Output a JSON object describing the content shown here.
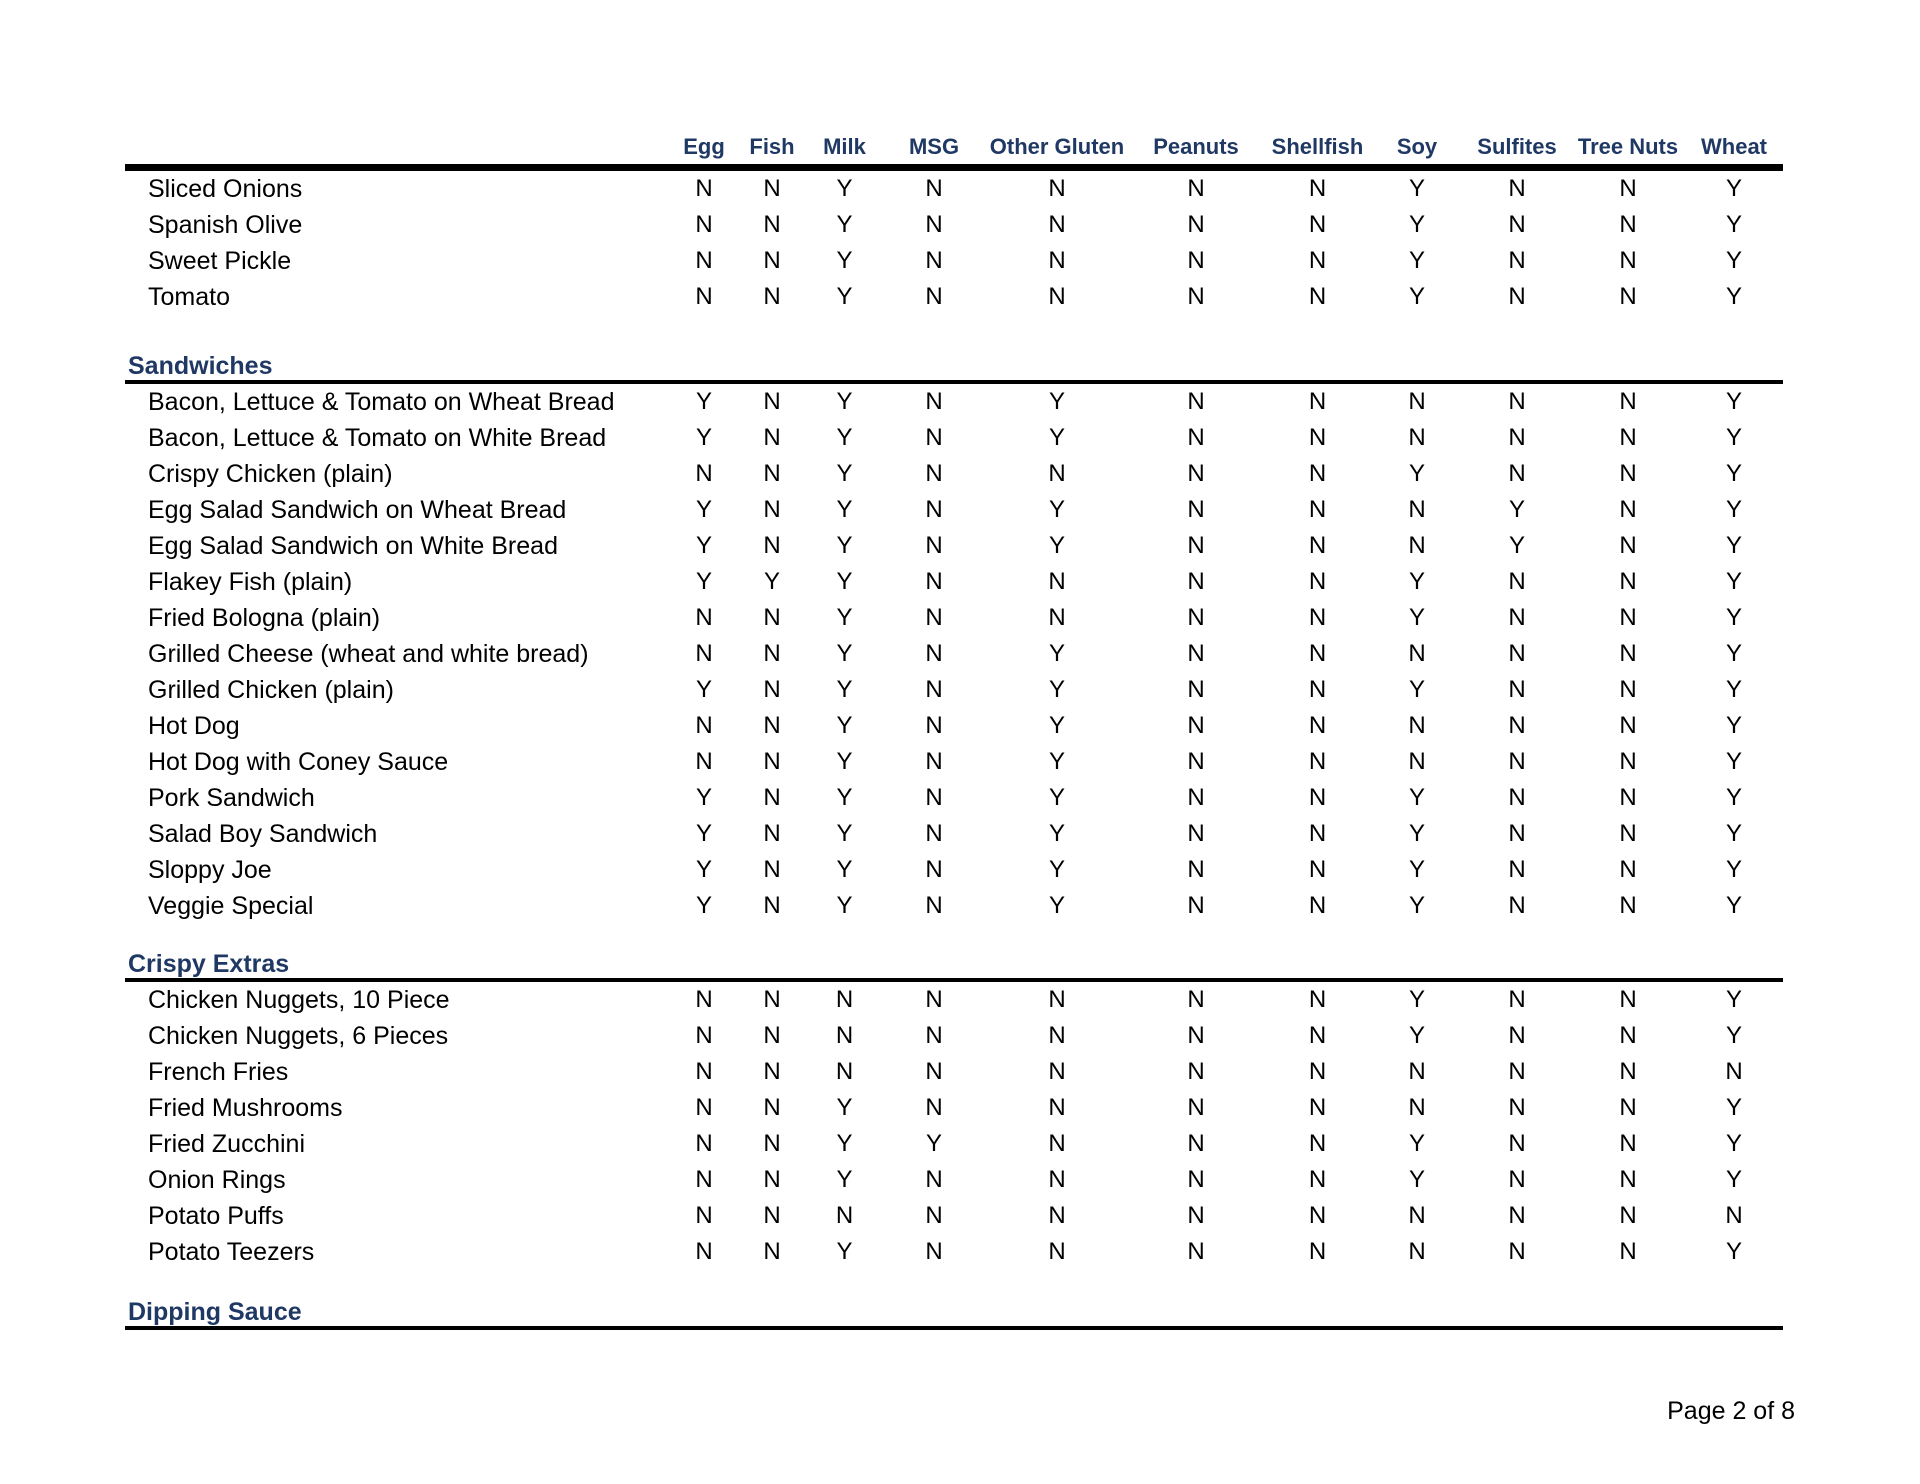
{
  "document": {
    "footer_page_label": "Page 2 of 8"
  },
  "colors": {
    "heading_navy": "#1f3864",
    "text_black": "#000000",
    "rule_black": "#000000"
  },
  "allergen_table": {
    "column_headers": [
      "Egg",
      "Fish",
      "Milk",
      "MSG",
      "Other Gluten",
      "Peanuts",
      "Shellfish",
      "Soy",
      "Sulfites",
      "Tree Nuts",
      "Wheat"
    ],
    "sections": [
      {
        "title": "",
        "items": [
          {
            "name": "Sliced Onions",
            "values": [
              "N",
              "N",
              "Y",
              "N",
              "N",
              "N",
              "N",
              "Y",
              "N",
              "N",
              "Y"
            ]
          },
          {
            "name": "Spanish Olive",
            "values": [
              "N",
              "N",
              "Y",
              "N",
              "N",
              "N",
              "N",
              "Y",
              "N",
              "N",
              "Y"
            ]
          },
          {
            "name": "Sweet Pickle",
            "values": [
              "N",
              "N",
              "Y",
              "N",
              "N",
              "N",
              "N",
              "Y",
              "N",
              "N",
              "Y"
            ]
          },
          {
            "name": "Tomato",
            "values": [
              "N",
              "N",
              "Y",
              "N",
              "N",
              "N",
              "N",
              "Y",
              "N",
              "N",
              "Y"
            ]
          }
        ]
      },
      {
        "title": "Sandwiches",
        "items": [
          {
            "name": "Bacon, Lettuce & Tomato on Wheat Bread",
            "values": [
              "Y",
              "N",
              "Y",
              "N",
              "Y",
              "N",
              "N",
              "N",
              "N",
              "N",
              "Y"
            ]
          },
          {
            "name": "Bacon, Lettuce & Tomato on White Bread",
            "values": [
              "Y",
              "N",
              "Y",
              "N",
              "Y",
              "N",
              "N",
              "N",
              "N",
              "N",
              "Y"
            ]
          },
          {
            "name": "Crispy Chicken (plain)",
            "values": [
              "N",
              "N",
              "Y",
              "N",
              "N",
              "N",
              "N",
              "Y",
              "N",
              "N",
              "Y"
            ]
          },
          {
            "name": "Egg Salad Sandwich on Wheat Bread",
            "values": [
              "Y",
              "N",
              "Y",
              "N",
              "Y",
              "N",
              "N",
              "N",
              "Y",
              "N",
              "Y"
            ]
          },
          {
            "name": "Egg Salad Sandwich on White Bread",
            "values": [
              "Y",
              "N",
              "Y",
              "N",
              "Y",
              "N",
              "N",
              "N",
              "Y",
              "N",
              "Y"
            ]
          },
          {
            "name": "Flakey Fish (plain)",
            "values": [
              "Y",
              "Y",
              "Y",
              "N",
              "N",
              "N",
              "N",
              "Y",
              "N",
              "N",
              "Y"
            ]
          },
          {
            "name": "Fried Bologna (plain)",
            "values": [
              "N",
              "N",
              "Y",
              "N",
              "N",
              "N",
              "N",
              "Y",
              "N",
              "N",
              "Y"
            ]
          },
          {
            "name": "Grilled Cheese (wheat and white bread)",
            "values": [
              "N",
              "N",
              "Y",
              "N",
              "Y",
              "N",
              "N",
              "N",
              "N",
              "N",
              "Y"
            ]
          },
          {
            "name": "Grilled Chicken (plain)",
            "values": [
              "Y",
              "N",
              "Y",
              "N",
              "Y",
              "N",
              "N",
              "Y",
              "N",
              "N",
              "Y"
            ]
          },
          {
            "name": "Hot Dog",
            "values": [
              "N",
              "N",
              "Y",
              "N",
              "Y",
              "N",
              "N",
              "N",
              "N",
              "N",
              "Y"
            ]
          },
          {
            "name": "Hot Dog with Coney Sauce",
            "values": [
              "N",
              "N",
              "Y",
              "N",
              "Y",
              "N",
              "N",
              "N",
              "N",
              "N",
              "Y"
            ]
          },
          {
            "name": "Pork Sandwich",
            "values": [
              "Y",
              "N",
              "Y",
              "N",
              "Y",
              "N",
              "N",
              "Y",
              "N",
              "N",
              "Y"
            ]
          },
          {
            "name": "Salad Boy Sandwich",
            "values": [
              "Y",
              "N",
              "Y",
              "N",
              "Y",
              "N",
              "N",
              "Y",
              "N",
              "N",
              "Y"
            ]
          },
          {
            "name": "Sloppy Joe",
            "values": [
              "Y",
              "N",
              "Y",
              "N",
              "Y",
              "N",
              "N",
              "Y",
              "N",
              "N",
              "Y"
            ]
          },
          {
            "name": "Veggie Special",
            "values": [
              "Y",
              "N",
              "Y",
              "N",
              "Y",
              "N",
              "N",
              "Y",
              "N",
              "N",
              "Y"
            ]
          }
        ]
      },
      {
        "title": "Crispy Extras",
        "items": [
          {
            "name": "Chicken Nuggets, 10 Piece",
            "values": [
              "N",
              "N",
              "N",
              "N",
              "N",
              "N",
              "N",
              "Y",
              "N",
              "N",
              "Y"
            ]
          },
          {
            "name": "Chicken Nuggets, 6 Pieces",
            "values": [
              "N",
              "N",
              "N",
              "N",
              "N",
              "N",
              "N",
              "Y",
              "N",
              "N",
              "Y"
            ]
          },
          {
            "name": "French Fries",
            "values": [
              "N",
              "N",
              "N",
              "N",
              "N",
              "N",
              "N",
              "N",
              "N",
              "N",
              "N"
            ]
          },
          {
            "name": "Fried Mushrooms",
            "values": [
              "N",
              "N",
              "Y",
              "N",
              "N",
              "N",
              "N",
              "N",
              "N",
              "N",
              "Y"
            ]
          },
          {
            "name": "Fried Zucchini",
            "values": [
              "N",
              "N",
              "Y",
              "Y",
              "N",
              "N",
              "N",
              "Y",
              "N",
              "N",
              "Y"
            ]
          },
          {
            "name": "Onion Rings",
            "values": [
              "N",
              "N",
              "Y",
              "N",
              "N",
              "N",
              "N",
              "Y",
              "N",
              "N",
              "Y"
            ]
          },
          {
            "name": "Potato Puffs",
            "values": [
              "N",
              "N",
              "N",
              "N",
              "N",
              "N",
              "N",
              "N",
              "N",
              "N",
              "N"
            ]
          },
          {
            "name": "Potato Teezers",
            "values": [
              "N",
              "N",
              "Y",
              "N",
              "N",
              "N",
              "N",
              "N",
              "N",
              "N",
              "Y"
            ]
          }
        ]
      },
      {
        "title": "Dipping Sauce",
        "items": []
      }
    ]
  }
}
